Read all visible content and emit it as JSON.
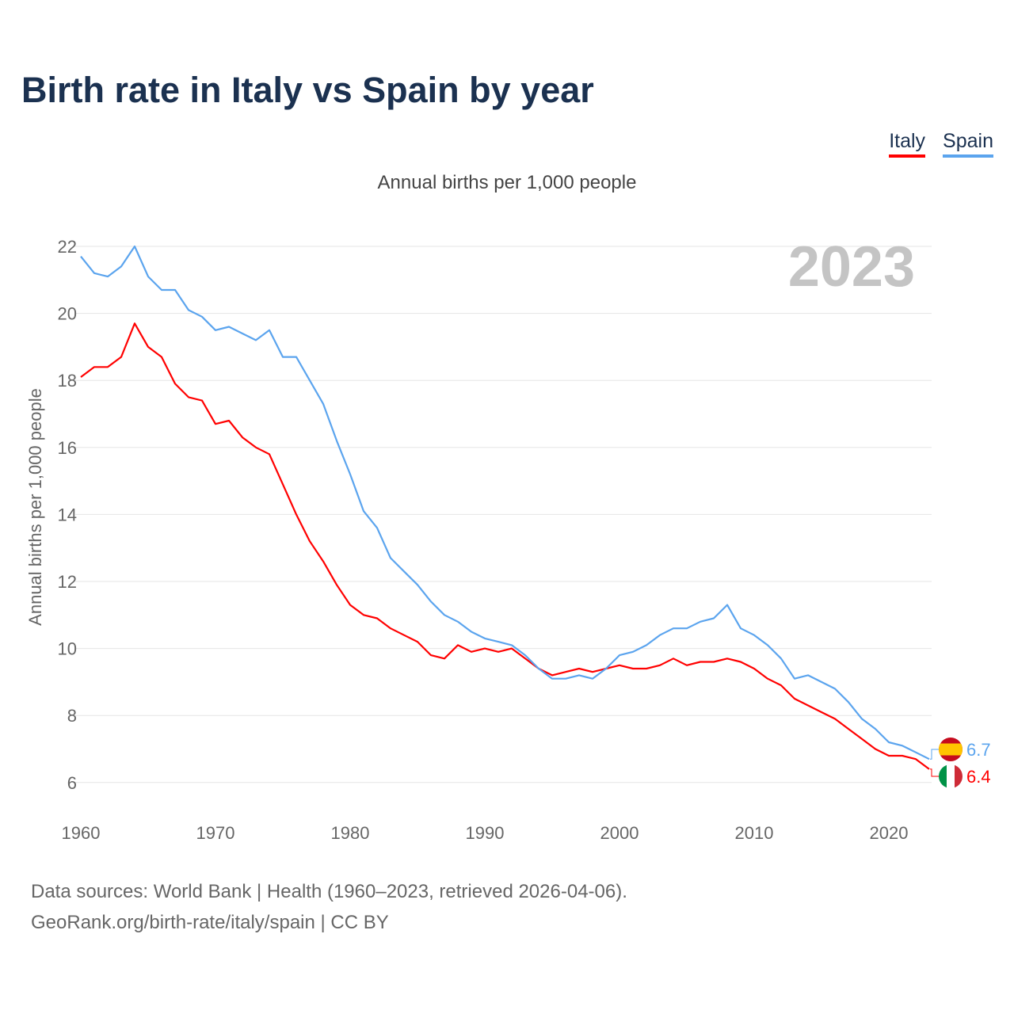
{
  "title": "Birth rate in Italy vs Spain by year",
  "subtitle": "Annual births per 1,000 people",
  "source_line1": "Data sources: World Bank | Health (1960–2023, retrieved 2026-04-06).",
  "source_line2": "GeoRank.org/birth-rate/italy/spain | CC BY",
  "chart_data": {
    "type": "line",
    "title": "Birth rate in Italy vs Spain by year",
    "ylabel": "Annual births per 1,000 people",
    "xlabel": "",
    "year_label": "2023",
    "xlim": [
      1960,
      2023
    ],
    "ylim": [
      5,
      22.5
    ],
    "yticks": [
      6,
      8,
      10,
      12,
      14,
      16,
      18,
      20,
      22
    ],
    "xticks": [
      1960,
      1970,
      1980,
      1990,
      2000,
      2010,
      2020
    ],
    "grid": true,
    "legend": "top-right",
    "x_start": 1960,
    "series": [
      {
        "name": "Italy",
        "color": "#ff0000",
        "end_label": "6.4",
        "values": [
          18.1,
          18.4,
          18.4,
          18.7,
          19.7,
          19.0,
          18.7,
          17.9,
          17.5,
          17.4,
          16.7,
          16.8,
          16.3,
          16.0,
          15.8,
          14.9,
          14.0,
          13.2,
          12.6,
          11.9,
          11.3,
          11.0,
          10.9,
          10.6,
          10.4,
          10.2,
          9.8,
          9.7,
          10.1,
          9.9,
          10.0,
          9.9,
          10.0,
          9.7,
          9.4,
          9.2,
          9.3,
          9.4,
          9.3,
          9.4,
          9.5,
          9.4,
          9.4,
          9.5,
          9.7,
          9.5,
          9.6,
          9.6,
          9.7,
          9.6,
          9.4,
          9.1,
          8.9,
          8.5,
          8.3,
          8.1,
          7.9,
          7.6,
          7.3,
          7.0,
          6.8,
          6.8,
          6.7,
          6.4
        ]
      },
      {
        "name": "Spain",
        "color": "#5ba4ee",
        "end_label": "6.7",
        "values": [
          21.7,
          21.2,
          21.1,
          21.4,
          22.0,
          21.1,
          20.7,
          20.7,
          20.1,
          19.9,
          19.5,
          19.6,
          19.4,
          19.2,
          19.5,
          18.7,
          18.7,
          18.0,
          17.3,
          16.2,
          15.2,
          14.1,
          13.6,
          12.7,
          12.3,
          11.9,
          11.4,
          11.0,
          10.8,
          10.5,
          10.3,
          10.2,
          10.1,
          9.8,
          9.4,
          9.1,
          9.1,
          9.2,
          9.1,
          9.4,
          9.8,
          9.9,
          10.1,
          10.4,
          10.6,
          10.6,
          10.8,
          10.9,
          11.3,
          10.6,
          10.4,
          10.1,
          9.7,
          9.1,
          9.2,
          9.0,
          8.8,
          8.4,
          7.9,
          7.6,
          7.2,
          7.1,
          6.9,
          6.7
        ]
      }
    ]
  }
}
